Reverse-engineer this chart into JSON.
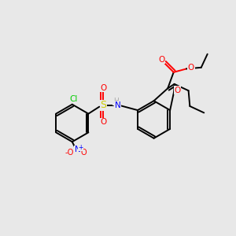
{
  "bg_color": "#e8e8e8",
  "bond_color": "#000000",
  "colors": {
    "O": "#ff0000",
    "N": "#0000ff",
    "S": "#cccc00",
    "Cl": "#00cc00",
    "H": "#aaaaaa"
  },
  "bond_lw": 1.4,
  "font_size": 7.5,
  "double_sep": 2.8
}
